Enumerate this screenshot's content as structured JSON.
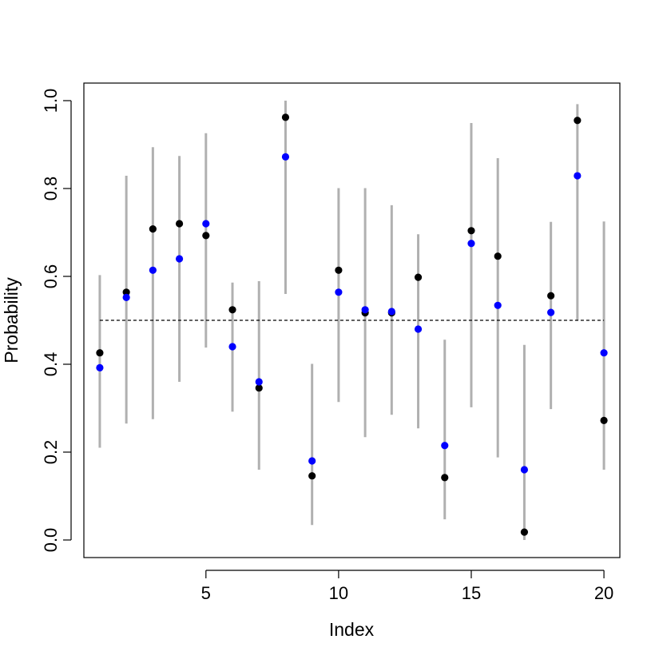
{
  "chart_data": {
    "type": "scatter",
    "title": "",
    "xlabel": "Index",
    "ylabel": "Probability",
    "xlim": [
      0.4,
      20.6
    ],
    "ylim": [
      -0.04,
      1.04
    ],
    "x_ticks": [
      5,
      10,
      15,
      20
    ],
    "x_tick_labels": [
      "5",
      "10",
      "15",
      "20"
    ],
    "y_ticks": [
      0.0,
      0.2,
      0.4,
      0.6,
      0.8,
      1.0
    ],
    "y_tick_labels": [
      "0.0",
      "0.2",
      "0.4",
      "0.6",
      "0.8",
      "1.0"
    ],
    "grid": false,
    "legend": "none",
    "reference_line": {
      "y": 0.5,
      "x_from": 1,
      "x_to": 20,
      "style": "dashed",
      "color": "#000000"
    },
    "intervals": {
      "color": "#b0b0b0",
      "x": [
        1,
        2,
        3,
        4,
        5,
        6,
        7,
        8,
        9,
        10,
        11,
        12,
        13,
        14,
        15,
        16,
        17,
        18,
        19,
        20
      ],
      "lower": [
        0.21,
        0.265,
        0.275,
        0.36,
        0.438,
        0.292,
        0.16,
        0.56,
        0.034,
        0.314,
        0.234,
        0.285,
        0.254,
        0.047,
        0.302,
        0.188,
        0.0,
        0.298,
        0.5,
        0.16
      ],
      "upper": [
        0.603,
        0.829,
        0.894,
        0.874,
        0.926,
        0.586,
        0.589,
        1.0,
        0.401,
        0.801,
        0.801,
        0.762,
        0.696,
        0.456,
        0.949,
        0.869,
        0.444,
        0.724,
        0.992,
        0.725
      ]
    },
    "series": [
      {
        "color": "#000000",
        "x": [
          1,
          2,
          3,
          4,
          5,
          6,
          7,
          8,
          9,
          10,
          11,
          12,
          13,
          14,
          15,
          16,
          17,
          18,
          19,
          20
        ],
        "values": [
          0.426,
          0.564,
          0.708,
          0.72,
          0.693,
          0.524,
          0.346,
          0.962,
          0.146,
          0.614,
          0.517,
          0.517,
          0.598,
          0.142,
          0.704,
          0.646,
          0.018,
          0.556,
          0.955,
          0.272
        ]
      },
      {
        "color": "#0000ff",
        "x": [
          1,
          2,
          3,
          4,
          5,
          6,
          7,
          8,
          9,
          10,
          11,
          12,
          13,
          14,
          15,
          16,
          17,
          18,
          19,
          20
        ],
        "values": [
          0.392,
          0.552,
          0.614,
          0.64,
          0.72,
          0.44,
          0.36,
          0.872,
          0.18,
          0.564,
          0.524,
          0.52,
          0.48,
          0.215,
          0.675,
          0.534,
          0.16,
          0.518,
          0.829,
          0.426
        ]
      }
    ]
  }
}
